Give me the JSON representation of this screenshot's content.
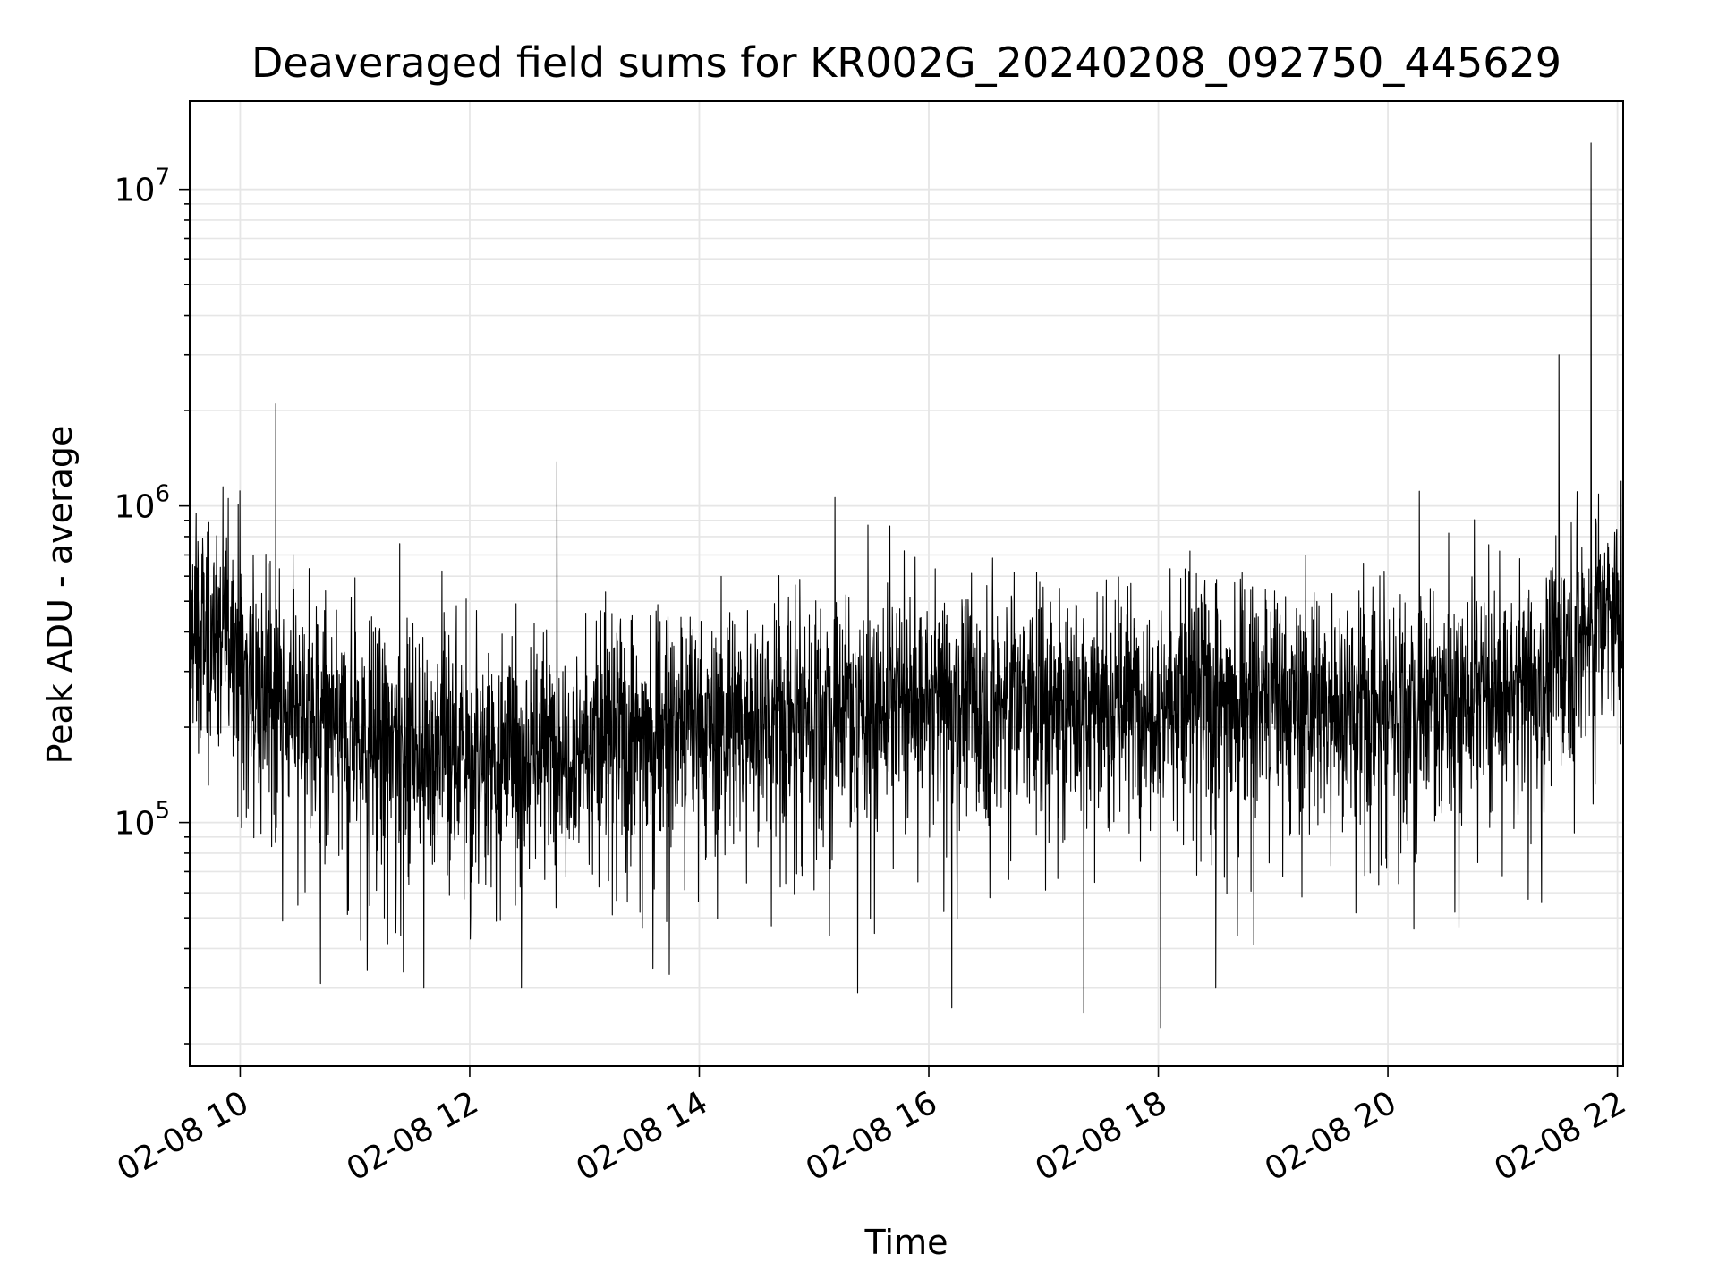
{
  "chart_data": {
    "type": "line",
    "title": "Deaveraged field sums for KR002G_20240208_092750_445629",
    "xlabel": "Time",
    "ylabel": "Peak ADU - average",
    "y_scale": "log",
    "ylim": [
      17000,
      19000000
    ],
    "xlim_hours": [
      9.56,
      22.05
    ],
    "grid": true,
    "grid_minor": true,
    "line_color": "#000000",
    "grid_color": "#e6e6e6",
    "x_ticks": [
      {
        "hour": 10,
        "label": "02-08 10"
      },
      {
        "hour": 12,
        "label": "02-08 12"
      },
      {
        "hour": 14,
        "label": "02-08 14"
      },
      {
        "hour": 16,
        "label": "02-08 16"
      },
      {
        "hour": 18,
        "label": "02-08 18"
      },
      {
        "hour": 20,
        "label": "02-08 20"
      },
      {
        "hour": 22,
        "label": "02-08 22"
      }
    ],
    "y_ticks": [
      {
        "value": 100000,
        "base": "10",
        "exp": "5"
      },
      {
        "value": 1000000,
        "base": "10",
        "exp": "6"
      },
      {
        "value": 10000000,
        "base": "10",
        "exp": "7"
      }
    ],
    "series": [
      {
        "trend": [
          {
            "hour": 9.56,
            "value": 380000
          },
          {
            "hour": 9.9,
            "value": 420000
          },
          {
            "hour": 10.2,
            "value": 240000
          },
          {
            "hour": 11.0,
            "value": 190000
          },
          {
            "hour": 12.0,
            "value": 170000
          },
          {
            "hour": 13.0,
            "value": 180000
          },
          {
            "hour": 14.0,
            "value": 200000
          },
          {
            "hour": 15.0,
            "value": 230000
          },
          {
            "hour": 16.0,
            "value": 240000
          },
          {
            "hour": 17.0,
            "value": 240000
          },
          {
            "hour": 18.0,
            "value": 250000
          },
          {
            "hour": 19.0,
            "value": 240000
          },
          {
            "hour": 20.0,
            "value": 240000
          },
          {
            "hour": 21.0,
            "value": 250000
          },
          {
            "hour": 21.35,
            "value": 270000
          },
          {
            "hour": 21.6,
            "value": 380000
          },
          {
            "hour": 22.05,
            "value": 470000
          }
        ],
        "spikes": [
          {
            "hour": 10.31,
            "value": 2100000
          },
          {
            "hour": 12.76,
            "value": 1380000
          },
          {
            "hour": 11.39,
            "value": 760000
          },
          {
            "hour": 15.47,
            "value": 870000
          },
          {
            "hour": 21.49,
            "value": 3000000
          },
          {
            "hour": 21.77,
            "value": 14000000
          },
          {
            "hour": 9.85,
            "value": 1150000
          },
          {
            "hour": 20.53,
            "value": 820000
          }
        ],
        "dips": [
          {
            "hour": 10.7,
            "value": 31000
          },
          {
            "hour": 11.6,
            "value": 30000
          },
          {
            "hour": 12.45,
            "value": 30000
          },
          {
            "hour": 15.38,
            "value": 29000
          },
          {
            "hour": 16.2,
            "value": 26000
          },
          {
            "hour": 17.35,
            "value": 25000
          },
          {
            "hour": 18.02,
            "value": 22500
          },
          {
            "hour": 18.5,
            "value": 30000
          }
        ]
      }
    ]
  }
}
